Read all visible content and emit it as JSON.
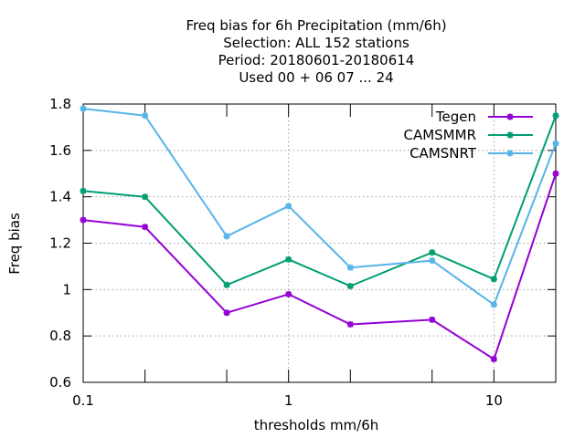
{
  "chart_data": {
    "type": "line",
    "title_lines": [
      "Freq bias  for 6h Precipitation (mm/6h)",
      "Selection: ALL    152 stations",
      "Period: 20180601-20180614",
      "Used  00 + 06 07 ... 24"
    ],
    "xlabel": "thresholds mm/6h",
    "ylabel": "Freq bias",
    "x_scale": "log",
    "xlim": [
      0.1,
      20
    ],
    "ylim": [
      0.6,
      1.8
    ],
    "x_ticks": [
      {
        "value": 0.1,
        "label": "0.1"
      },
      {
        "value": 1,
        "label": "1"
      },
      {
        "value": 10,
        "label": "10"
      }
    ],
    "y_ticks": [
      {
        "value": 0.6,
        "label": "0.6"
      },
      {
        "value": 0.8,
        "label": "0.8"
      },
      {
        "value": 1.0,
        "label": "1"
      },
      {
        "value": 1.2,
        "label": "1.2"
      },
      {
        "value": 1.4,
        "label": "1.4"
      },
      {
        "value": 1.6,
        "label": "1.6"
      },
      {
        "value": 1.8,
        "label": "1.8"
      }
    ],
    "grid": true,
    "legend_position": "top-right",
    "x": [
      0.1,
      0.2,
      0.5,
      1,
      2,
      5,
      10,
      20
    ],
    "series": [
      {
        "name": "Tegen",
        "color": "#9400d3",
        "values": [
          1.3,
          1.27,
          0.9,
          0.98,
          0.85,
          0.87,
          0.7,
          1.5
        ]
      },
      {
        "name": "CAMSMMR",
        "color": "#009e73",
        "values": [
          1.425,
          1.4,
          1.02,
          1.13,
          1.015,
          1.16,
          1.045,
          1.75
        ]
      },
      {
        "name": "CAMSNRT",
        "color": "#56b4e9",
        "values": [
          1.78,
          1.75,
          1.23,
          1.36,
          1.095,
          1.125,
          0.935,
          1.63
        ]
      }
    ]
  }
}
